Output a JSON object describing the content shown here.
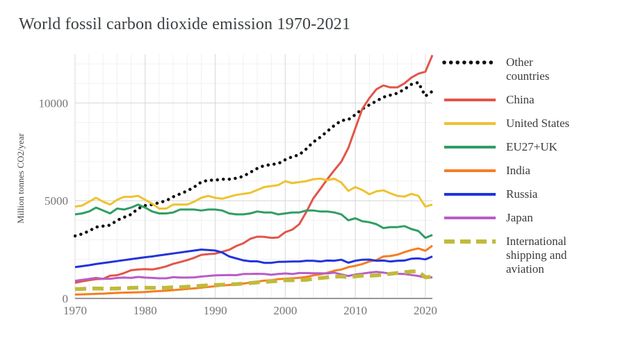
{
  "chart_data": {
    "type": "line",
    "title": "World fossil carbon dioxide emission 1970-2021",
    "xlabel": "",
    "ylabel": "Million tonnes CO2/year",
    "xlim": [
      1970,
      2021
    ],
    "ylim": [
      0,
      12500
    ],
    "x_ticks": [
      "1970",
      "1980",
      "1990",
      "2000",
      "2010",
      "2020"
    ],
    "y_ticks": [
      0,
      5000,
      10000
    ],
    "grid": true,
    "legend_position": "right",
    "axis_color": "#757575",
    "major_grid_color": "#d8d8d8",
    "minor_grid_color": "#f0f0f0",
    "years": [
      1970,
      1971,
      1972,
      1973,
      1974,
      1975,
      1976,
      1977,
      1978,
      1979,
      1980,
      1981,
      1982,
      1983,
      1984,
      1985,
      1986,
      1987,
      1988,
      1989,
      1990,
      1991,
      1992,
      1993,
      1994,
      1995,
      1996,
      1997,
      1998,
      1999,
      2000,
      2001,
      2002,
      2003,
      2004,
      2005,
      2006,
      2007,
      2008,
      2009,
      2010,
      2011,
      2012,
      2013,
      2014,
      2015,
      2016,
      2017,
      2018,
      2019,
      2020,
      2021
    ],
    "series": [
      {
        "name": "Other countries",
        "legend_label": "Other\ncountries",
        "color": "#111111",
        "style": "dotted",
        "values": [
          3200,
          3300,
          3450,
          3650,
          3700,
          3750,
          4000,
          4150,
          4300,
          4600,
          4750,
          4800,
          4900,
          5000,
          5200,
          5350,
          5500,
          5700,
          5950,
          6050,
          6050,
          6100,
          6100,
          6150,
          6250,
          6450,
          6650,
          6800,
          6850,
          6900,
          7100,
          7250,
          7350,
          7650,
          8000,
          8250,
          8550,
          8850,
          9100,
          9150,
          9400,
          9700,
          9900,
          10100,
          10300,
          10400,
          10500,
          10700,
          10950,
          11050,
          10350,
          10600
        ]
      },
      {
        "name": "China",
        "legend_label": "China",
        "color": "#e25549",
        "style": "solid",
        "values": [
          800,
          875,
          935,
          985,
          1000,
          1160,
          1190,
          1300,
          1440,
          1480,
          1500,
          1480,
          1550,
          1640,
          1770,
          1860,
          1960,
          2080,
          2230,
          2270,
          2290,
          2390,
          2490,
          2680,
          2820,
          3050,
          3160,
          3150,
          3100,
          3120,
          3390,
          3520,
          3800,
          4420,
          5120,
          5600,
          6100,
          6560,
          7000,
          7700,
          8700,
          9700,
          10250,
          10700,
          10900,
          10800,
          10800,
          11000,
          11300,
          11500,
          11600,
          12450
        ]
      },
      {
        "name": "United States",
        "legend_label": "United States",
        "color": "#eec231",
        "style": "solid",
        "values": [
          4700,
          4750,
          4950,
          5150,
          4950,
          4800,
          5050,
          5200,
          5200,
          5250,
          5050,
          4850,
          4600,
          4600,
          4800,
          4800,
          4800,
          4950,
          5150,
          5250,
          5150,
          5100,
          5200,
          5300,
          5350,
          5400,
          5550,
          5700,
          5750,
          5800,
          6000,
          5900,
          5950,
          6000,
          6100,
          6130,
          6050,
          6130,
          5930,
          5500,
          5700,
          5550,
          5330,
          5480,
          5530,
          5380,
          5250,
          5210,
          5350,
          5250,
          4700,
          4800
        ]
      },
      {
        "name": "EU27+UK",
        "legend_label": "EU27+UK",
        "color": "#2f9e63",
        "style": "solid",
        "values": [
          4300,
          4350,
          4450,
          4650,
          4500,
          4350,
          4600,
          4550,
          4650,
          4800,
          4650,
          4450,
          4350,
          4350,
          4400,
          4550,
          4550,
          4550,
          4500,
          4550,
          4550,
          4500,
          4350,
          4300,
          4300,
          4350,
          4450,
          4400,
          4400,
          4300,
          4350,
          4400,
          4400,
          4500,
          4500,
          4450,
          4450,
          4400,
          4300,
          4000,
          4100,
          3950,
          3900,
          3800,
          3600,
          3650,
          3650,
          3700,
          3550,
          3450,
          3100,
          3250
        ]
      },
      {
        "name": "India",
        "legend_label": "India",
        "color": "#f67d22",
        "style": "solid",
        "values": [
          200,
          210,
          225,
          235,
          245,
          265,
          285,
          300,
          305,
          315,
          330,
          355,
          375,
          395,
          425,
          455,
          485,
          515,
          550,
          590,
          620,
          660,
          690,
          720,
          760,
          810,
          860,
          910,
          930,
          990,
          1010,
          1030,
          1060,
          1100,
          1180,
          1230,
          1310,
          1420,
          1480,
          1600,
          1670,
          1760,
          1890,
          1960,
          2150,
          2170,
          2240,
          2370,
          2480,
          2560,
          2440,
          2700
        ]
      },
      {
        "name": "Russia",
        "legend_label": "Russia",
        "color": "#2233dd",
        "style": "solid",
        "values": [
          1600,
          1650,
          1700,
          1760,
          1810,
          1860,
          1910,
          1960,
          2010,
          2060,
          2110,
          2150,
          2200,
          2250,
          2300,
          2350,
          2400,
          2450,
          2500,
          2480,
          2450,
          2350,
          2150,
          2050,
          1950,
          1900,
          1900,
          1820,
          1820,
          1870,
          1880,
          1890,
          1890,
          1930,
          1930,
          1890,
          1940,
          1930,
          1980,
          1830,
          1930,
          1980,
          1990,
          1930,
          1940,
          1890,
          1930,
          1940,
          2030,
          2050,
          2000,
          2150
        ]
      },
      {
        "name": "Japan",
        "legend_label": "Japan",
        "color": "#b85cc8",
        "style": "solid",
        "values": [
          900,
          950,
          1000,
          1050,
          1000,
          1000,
          1050,
          1070,
          1050,
          1100,
          1070,
          1050,
          1030,
          1030,
          1090,
          1070,
          1070,
          1080,
          1120,
          1150,
          1180,
          1190,
          1200,
          1190,
          1250,
          1250,
          1260,
          1250,
          1210,
          1250,
          1280,
          1250,
          1300,
          1300,
          1290,
          1290,
          1280,
          1320,
          1230,
          1150,
          1220,
          1270,
          1320,
          1360,
          1320,
          1270,
          1260,
          1250,
          1200,
          1150,
          1070,
          1080
        ]
      },
      {
        "name": "International shipping and aviation",
        "legend_label": "International\nshipping and\naviation",
        "color": "#c0ba3c",
        "style": "dashed",
        "values": [
          480,
          490,
          500,
          510,
          500,
          500,
          510,
          520,
          540,
          550,
          550,
          540,
          540,
          550,
          570,
          580,
          600,
          620,
          650,
          670,
          690,
          700,
          720,
          730,
          760,
          790,
          820,
          850,
          870,
          900,
          930,
          930,
          940,
          950,
          1000,
          1040,
          1080,
          1120,
          1130,
          1090,
          1130,
          1160,
          1160,
          1180,
          1220,
          1260,
          1300,
          1340,
          1380,
          1390,
          1080,
          1110
        ]
      }
    ]
  }
}
